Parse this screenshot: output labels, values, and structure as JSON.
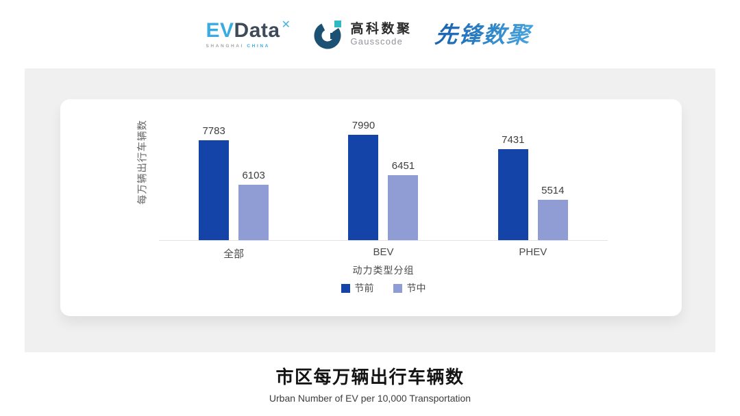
{
  "header": {
    "evdata": {
      "ev": "EV",
      "data": "Data",
      "x_mark": "✕",
      "sub_left": "SHANGHAI",
      "sub_right": "CHINA"
    },
    "gausscode": {
      "cn": "高科数聚",
      "en": "Gausscode"
    },
    "pioneer": {
      "text": "先锋数聚"
    }
  },
  "chart_data": {
    "type": "bar",
    "title": "市区每万辆出行车辆数",
    "subtitle": "Urban Number of EV per 10,000 Transportation",
    "xlabel": "动力类型分组",
    "ylabel": "每万辆出行车辆数",
    "categories": [
      "全部",
      "BEV",
      "PHEV"
    ],
    "series": [
      {
        "name": "节前",
        "color": "#1444A8",
        "values": [
          7783,
          7990,
          7431
        ]
      },
      {
        "name": "节中",
        "color": "#8F9DD4",
        "values": [
          6103,
          6451,
          5514
        ]
      }
    ],
    "ylim": [
      4000,
      9350
    ],
    "grid": false,
    "value_labels": true,
    "legend_position": "bottom"
  },
  "colors": {
    "panel_bg": "#F0F0F1",
    "card_bg": "#FFFFFF",
    "axis_line": "#E3E3E3",
    "accent_dark_blue": "#1444A8",
    "accent_light_blue": "#8F9DD4",
    "logo_blue": "#3AABE0",
    "logo_navy": "#3D4A59",
    "gausscode_navy": "#1D5173",
    "gausscode_teal": "#2FB9C7"
  }
}
